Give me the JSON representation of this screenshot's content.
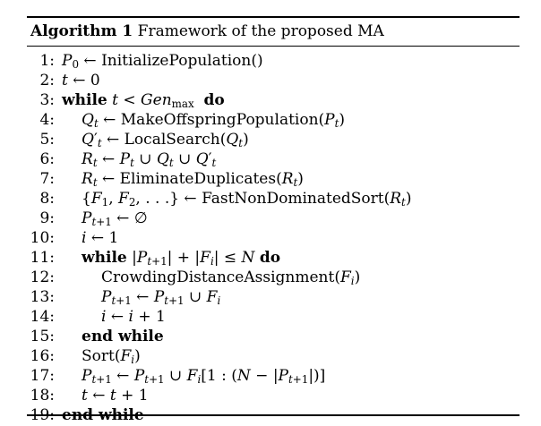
{
  "caption": {
    "label": "Algorithm 1",
    "title": "Framework of the proposed MA"
  },
  "lines": [
    {
      "num": "1:",
      "indent": 0,
      "html": "<i>P</i><sub>0</sub> ← InitializePopulation()"
    },
    {
      "num": "2:",
      "indent": 0,
      "html": "<i>t</i> ← 0"
    },
    {
      "num": "3:",
      "indent": 0,
      "html": "<span class=\"kw\">while</span> <i>t</i> &lt; <i>Gen</i><sub>max</sub>&nbsp;&nbsp;<span class=\"kw\">do</span>"
    },
    {
      "num": "4:",
      "indent": 1,
      "html": "<i>Q<sub>t</sub></i> ← MakeOffspringPopulation(<i>P<sub>t</sub></i>)"
    },
    {
      "num": "5:",
      "indent": 1,
      "html": "<i>Q</i>′<sub><i>t</i></sub> ← LocalSearch(<i>Q<sub>t</sub></i>)"
    },
    {
      "num": "6:",
      "indent": 1,
      "html": "<i>R<sub>t</sub></i> ← <i>P<sub>t</sub></i> ∪ <i>Q<sub>t</sub></i> ∪ <i>Q</i>′<sub><i>t</i></sub>"
    },
    {
      "num": "7:",
      "indent": 1,
      "html": "<i>R<sub>t</sub></i> ← EliminateDuplicates(<i>R<sub>t</sub></i>)"
    },
    {
      "num": "8:",
      "indent": 1,
      "html": "{<i>F</i><sub>1</sub>, <i>F</i><sub>2</sub>, . . .} ← FastNonDominatedSort(<i>R<sub>t</sub></i>)"
    },
    {
      "num": "9:",
      "indent": 1,
      "html": "<i>P</i><sub><i>t</i>+1</sub> ← ∅"
    },
    {
      "num": "10:",
      "indent": 1,
      "html": "<i>i</i> ← 1"
    },
    {
      "num": "11:",
      "indent": 1,
      "html": "<span class=\"kw\">while</span> |<i>P</i><sub><i>t</i>+1</sub>| + |<i>F<sub>i</sub></i>| ≤ <i>N</i> <span class=\"kw\">do</span>"
    },
    {
      "num": "12:",
      "indent": 2,
      "html": "CrowdingDistanceAssignment(<i>F<sub>i</sub></i>)"
    },
    {
      "num": "13:",
      "indent": 2,
      "html": "<i>P</i><sub><i>t</i>+1</sub> ← <i>P</i><sub><i>t</i>+1</sub> ∪ <i>F<sub>i</sub></i>"
    },
    {
      "num": "14:",
      "indent": 2,
      "html": "<i>i</i> ← <i>i</i> + 1"
    },
    {
      "num": "15:",
      "indent": 1,
      "html": "<span class=\"kw\">end while</span>"
    },
    {
      "num": "16:",
      "indent": 1,
      "html": "Sort(<i>F<sub>i</sub></i>)"
    },
    {
      "num": "17:",
      "indent": 1,
      "html": "<i>P</i><sub><i>t</i>+1</sub> ← <i>P</i><sub><i>t</i>+1</sub> ∪ <i>F<sub>i</sub></i>[1 : (<i>N</i> − |<i>P</i><sub><i>t</i>+1</sub>|)]"
    },
    {
      "num": "18:",
      "indent": 1,
      "html": "<i>t</i> ← <i>t</i> + 1"
    },
    {
      "num": "19:",
      "indent": 0,
      "html": "<span class=\"kw\">end while</span>"
    }
  ]
}
